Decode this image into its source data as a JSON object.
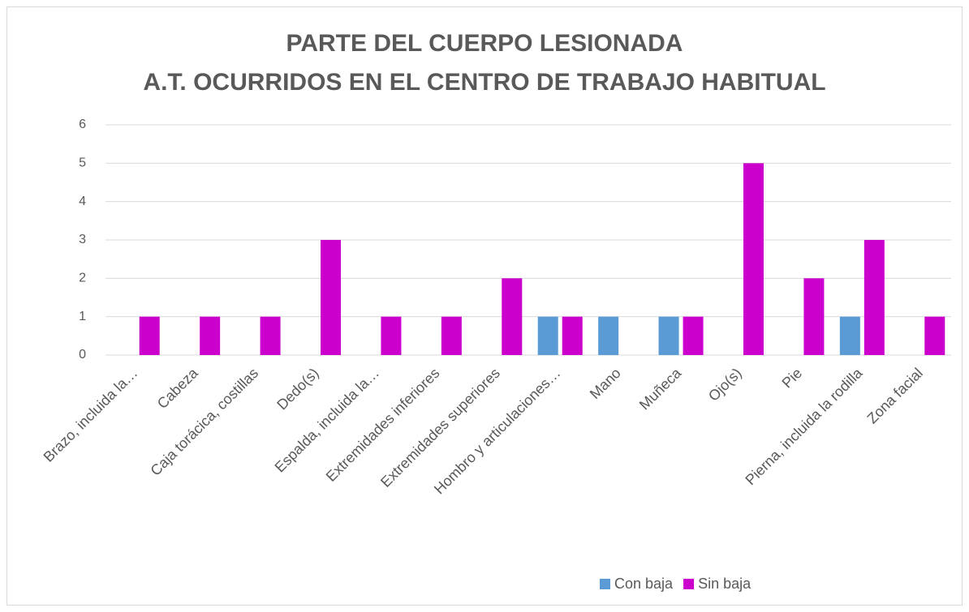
{
  "chart_data": {
    "type": "bar",
    "title": [
      "PARTE DEL CUERPO LESIONADA",
      "A.T. OCURRIDOS EN EL CENTRO DE TRABAJO HABITUAL"
    ],
    "categories": [
      "Brazo, incluida la…",
      "Cabeza",
      "Caja torácica, costillas",
      "Dedo(s)",
      "Espalda, incluida la…",
      "Extremidades inferiores",
      "Extremidades superiores",
      "Hombro y articulaciones…",
      "Mano",
      "Muñeca",
      "Ojo(s)",
      "Pie",
      "Pierna, incluida la rodilla",
      "Zona facial"
    ],
    "series": [
      {
        "name": "Con baja",
        "color": "#5b9bd5",
        "values": [
          0,
          0,
          0,
          0,
          0,
          0,
          0,
          1,
          1,
          1,
          0,
          0,
          1,
          0
        ]
      },
      {
        "name": "Sin baja",
        "color": "#cc00cc",
        "values": [
          1,
          1,
          1,
          3,
          1,
          1,
          2,
          1,
          0,
          1,
          5,
          2,
          3,
          1
        ]
      }
    ],
    "ylim": [
      0,
      6
    ],
    "yticks": [
      0,
      1,
      2,
      3,
      4,
      5,
      6
    ],
    "grid": true,
    "legend": "bottom"
  }
}
